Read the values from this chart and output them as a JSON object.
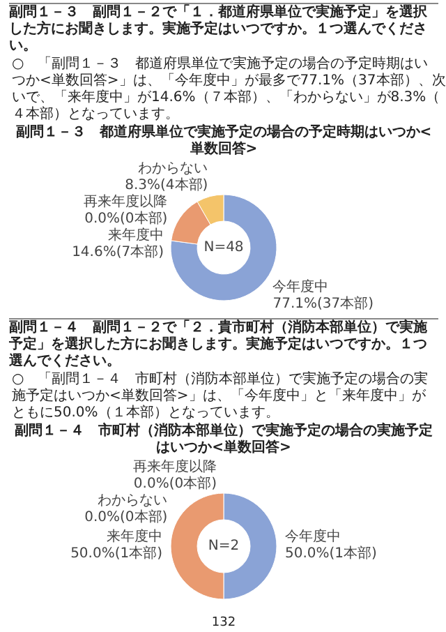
{
  "chart_data": [
    {
      "type": "donut",
      "title": "副問１－３　都道府県単位で実施予定の場合の予定時期はいつか<単数回答>",
      "categories": [
        "今年度中",
        "来年度中",
        "再来年度以降",
        "わからない"
      ],
      "values": [
        77.1,
        14.6,
        0.0,
        8.3
      ],
      "value_labels": [
        "77.1%(37本部)",
        "14.6%(7本部)",
        "0.0%(0本部)",
        "8.3%(4本部)"
      ],
      "colors": [
        "#8aa3d6",
        "#e99a70",
        "#d9874f",
        "#f4c46a"
      ],
      "annotations": [
        "副問１－３　副問１－２で「１．都道府県単位で実施予定」を選択した方にお聞きします。実施予定はいつですか。１つ選んでください。",
        "○　「副問１－３　都道府県単位で実施予定の場合の予定時期はいつか<単数回答>」は、「今年度中」が最多で77.1%（37本部）、次いで、「来年度中」が14.6%（７本部）、「わからない」が8.3%（４本部）となっています。",
        "N=48"
      ]
    },
    {
      "type": "donut",
      "title": "副問１－４　市町村（消防本部単位）で実施予定の場合の実施予定はいつか<単数回答>",
      "categories": [
        "今年度中",
        "来年度中",
        "再来年度以降",
        "わからない"
      ],
      "values": [
        50.0,
        50.0,
        0.0,
        0.0
      ],
      "value_labels": [
        "50.0%(1本部)",
        "50.0%(1本部)",
        "0.0%(0本部)",
        "0.0%(0本部)"
      ],
      "colors": [
        "#8aa3d6",
        "#e99a70",
        "#d9874f",
        "#f4c46a"
      ],
      "annotations": [
        "副問１－４　副問１－２で「２．貴市町村（消防本部単位）で実施予定」を選択した方にお聞きします。実施予定はいつですか。１つ選んでください。",
        "○　「副問１－４　市町村（消防本部単位）で実施予定の場合の実施予定はいつか<単数回答>」は、「今年度中」と「来年度中」がともに50.0%（１本部）となっています。",
        "N=2",
        "132"
      ]
    }
  ]
}
